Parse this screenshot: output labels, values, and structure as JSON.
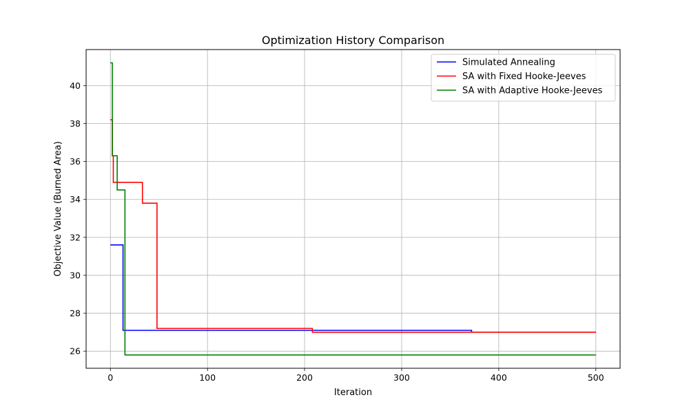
{
  "chart_data": {
    "type": "line",
    "title": "Optimization History Comparison",
    "xlabel": "Iteration",
    "ylabel": "Objective Value (Burned Area)",
    "xlim": [
      -25,
      525
    ],
    "ylim": [
      25.1,
      41.9
    ],
    "xticks": [
      0,
      100,
      200,
      300,
      400,
      500
    ],
    "yticks": [
      26,
      28,
      30,
      32,
      34,
      36,
      38,
      40
    ],
    "grid": true,
    "legend_position": "top-right",
    "series": [
      {
        "name": "Simulated Annealing",
        "color": "#0000ff",
        "step": true,
        "points": [
          [
            0,
            31.6
          ],
          [
            12,
            31.6
          ],
          [
            13,
            27.1
          ],
          [
            371,
            27.1
          ],
          [
            372,
            27.0
          ],
          [
            500,
            27.0
          ]
        ]
      },
      {
        "name": "SA with Fixed Hooke-Jeeves",
        "color": "#ff0000",
        "step": true,
        "points": [
          [
            0,
            38.2
          ],
          [
            2,
            36.3
          ],
          [
            3,
            34.9
          ],
          [
            32,
            34.9
          ],
          [
            33,
            33.8
          ],
          [
            47,
            33.8
          ],
          [
            48,
            27.2
          ],
          [
            207,
            27.2
          ],
          [
            208,
            27.0
          ],
          [
            500,
            27.0
          ]
        ]
      },
      {
        "name": "SA with Adaptive Hooke-Jeeves",
        "color": "#008000",
        "step": true,
        "points": [
          [
            0,
            41.2
          ],
          [
            2,
            36.3
          ],
          [
            6,
            36.3
          ],
          [
            7,
            34.5
          ],
          [
            13,
            34.5
          ],
          [
            15,
            25.8
          ],
          [
            500,
            25.8
          ]
        ]
      }
    ]
  }
}
